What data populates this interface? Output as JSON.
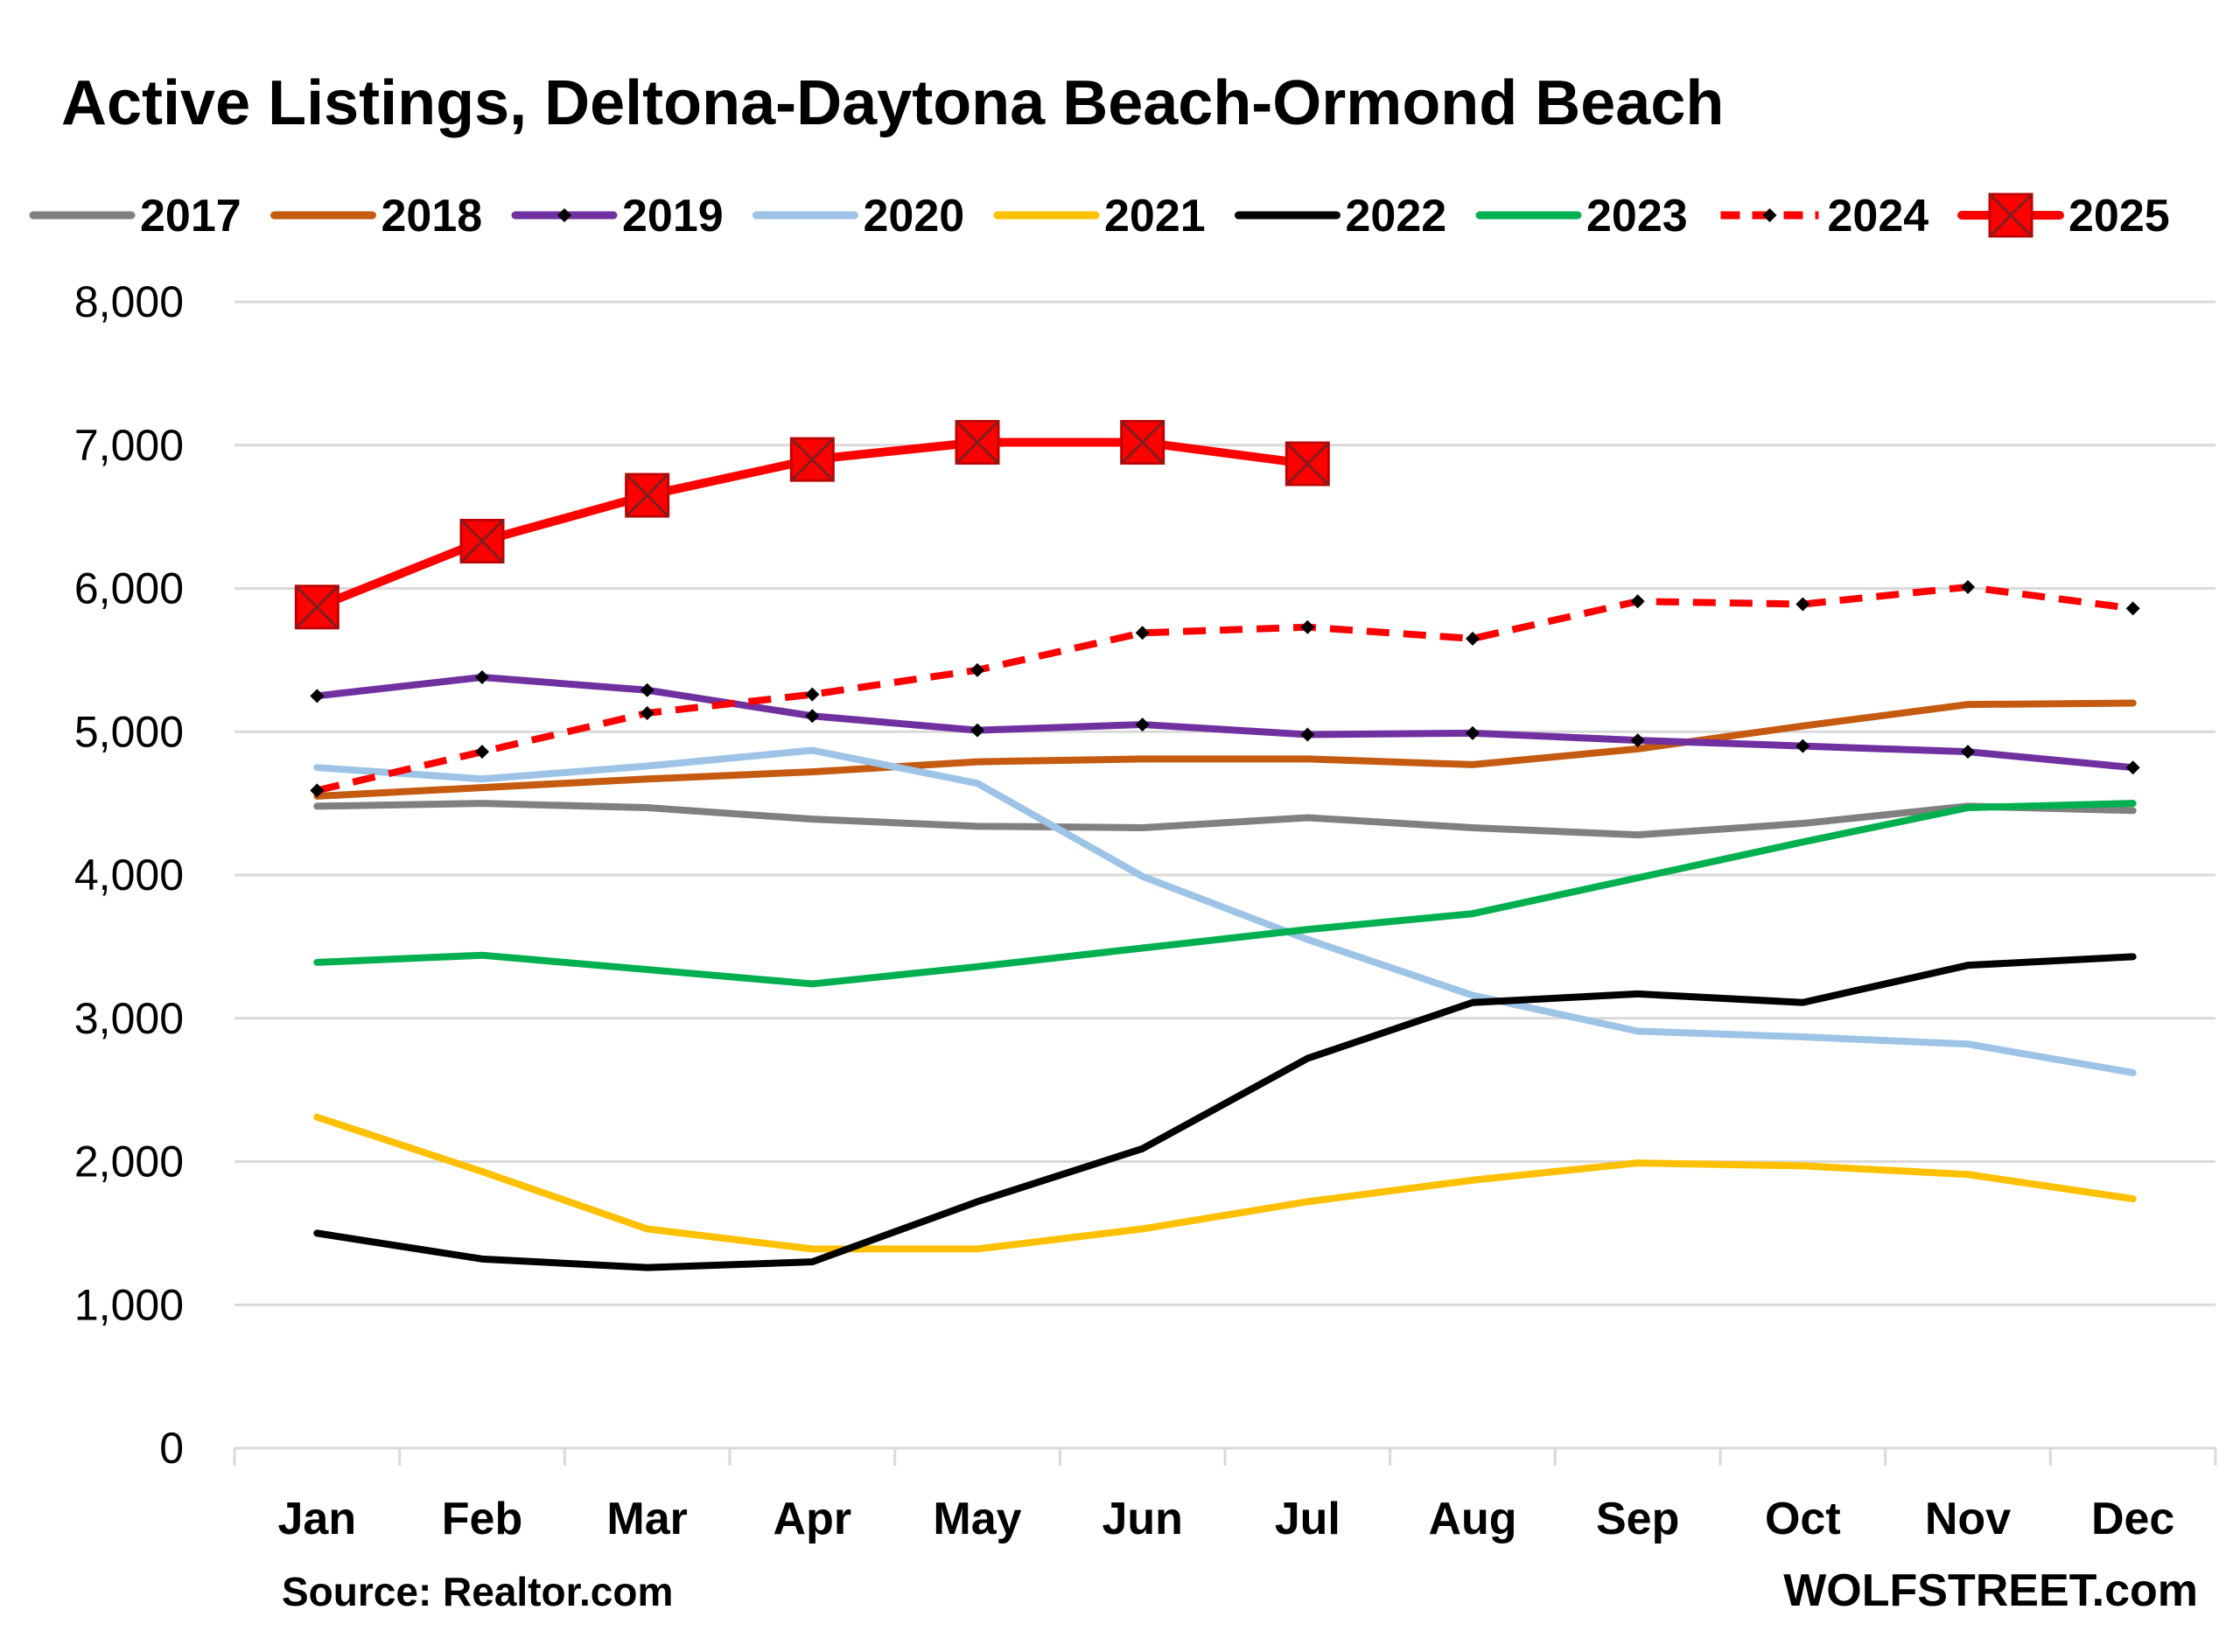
{
  "chart_data": {
    "type": "line",
    "title": "Active Listings, Deltona-Daytona Beach-Ormond Beach",
    "categories": [
      "Jan",
      "Feb",
      "Mar",
      "Apr",
      "May",
      "Jun",
      "Jul",
      "Aug",
      "Sep",
      "Oct",
      "Nov",
      "Dec"
    ],
    "ylim": [
      0,
      8000
    ],
    "yticks": [
      "0",
      "1,000",
      "2,000",
      "3,000",
      "4,000",
      "5,000",
      "6,000",
      "7,000",
      "8,000"
    ],
    "ytick_values": [
      0,
      1000,
      2000,
      3000,
      4000,
      5000,
      6000,
      7000,
      8000
    ],
    "grid": true,
    "legend_position": "top",
    "series": [
      {
        "name": "2017",
        "color": "#808080",
        "style": "solid",
        "marker": "none",
        "values": [
          4480,
          4500,
          4470,
          4390,
          4340,
          4330,
          4400,
          4330,
          4280,
          4360,
          4480,
          4450
        ]
      },
      {
        "name": "2018",
        "color": "#c55a11",
        "style": "solid",
        "marker": "none",
        "values": [
          4550,
          4610,
          4670,
          4720,
          4790,
          4810,
          4810,
          4770,
          4880,
          5040,
          5190,
          5200
        ]
      },
      {
        "name": "2019",
        "color": "#7030a0",
        "style": "solid",
        "marker": "diamond",
        "values": [
          5250,
          5380,
          5290,
          5110,
          5010,
          5050,
          4980,
          4990,
          4940,
          4900,
          4860,
          4750
        ]
      },
      {
        "name": "2020",
        "color": "#9dc3e6",
        "style": "solid",
        "marker": "none",
        "values": [
          4750,
          4670,
          4760,
          4870,
          4640,
          3990,
          3550,
          3160,
          2910,
          2870,
          2820,
          2620
        ]
      },
      {
        "name": "2021",
        "color": "#ffc000",
        "style": "solid",
        "marker": "none",
        "values": [
          2310,
          1930,
          1530,
          1390,
          1390,
          1530,
          1720,
          1870,
          1990,
          1970,
          1910,
          1740
        ]
      },
      {
        "name": "2022",
        "color": "#000000",
        "style": "solid",
        "marker": "none",
        "values": [
          1500,
          1320,
          1260,
          1300,
          1720,
          2090,
          2720,
          3110,
          3170,
          3110,
          3370,
          3430
        ]
      },
      {
        "name": "2023",
        "color": "#00b050",
        "style": "solid",
        "marker": "none",
        "values": [
          3390,
          3440,
          3340,
          3240,
          3360,
          3490,
          3620,
          3730,
          3980,
          4230,
          4470,
          4500
        ]
      },
      {
        "name": "2024",
        "color": "#ff0000",
        "style": "dashed",
        "marker": "diamond",
        "values": [
          4590,
          4860,
          5130,
          5260,
          5430,
          5690,
          5730,
          5650,
          5910,
          5890,
          6010,
          5860
        ]
      },
      {
        "name": "2025",
        "color": "#ff0000",
        "style": "solid",
        "marker": "square-x",
        "values": [
          5870,
          6330,
          6650,
          6900,
          7020,
          7020,
          6870,
          null,
          null,
          null,
          null,
          null
        ]
      }
    ]
  },
  "footer": {
    "source": "Source: Realtor.com",
    "brand": "WOLFSTREET.com"
  }
}
